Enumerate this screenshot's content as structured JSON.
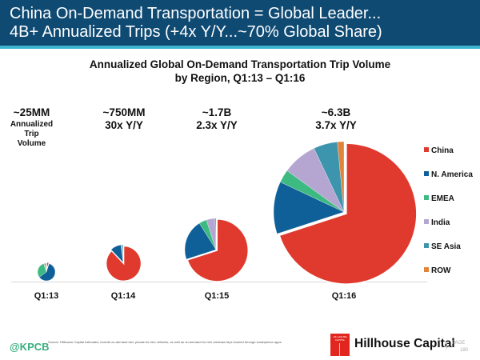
{
  "header": {
    "line1": "China On-Demand Transportation = Global Leader...",
    "line2": "4B+ Annualized Trips (+4x Y/Y...~70% Global Share)"
  },
  "chart_data": {
    "type": "pie",
    "title": "Annualized Global On-Demand Transportation Trip Volume",
    "subtitle": "by Region, Q1:13 – Q1:16",
    "legend_position": "right",
    "regions": [
      "China",
      "N. America",
      "EMEA",
      "India",
      "SE Asia",
      "ROW"
    ],
    "colors": {
      "China": "#e03a2e",
      "N. America": "#0f5f98",
      "EMEA": "#3dba82",
      "India": "#b4a6d0",
      "SE Asia": "#3d95ad",
      "ROW": "#e0843a"
    },
    "periods": [
      {
        "label": "Q1:13",
        "volume_label": "~25MM",
        "growth_label": "",
        "volume_trips": 25000000,
        "shares_pct": {
          "China": 5,
          "N. America": 60,
          "EMEA": 30,
          "India": 1,
          "SE Asia": 2,
          "ROW": 2
        }
      },
      {
        "label": "Q1:14",
        "volume_label": "~750MM",
        "growth_label": "30x Y/Y",
        "volume_trips": 750000000,
        "shares_pct": {
          "China": 88,
          "N. America": 10,
          "EMEA": 0.5,
          "India": 0.5,
          "SE Asia": 1,
          "ROW": 0
        }
      },
      {
        "label": "Q1:15",
        "volume_label": "~1.7B",
        "growth_label": "2.3x Y/Y",
        "volume_trips": 1700000000,
        "shares_pct": {
          "China": 70,
          "N. America": 21,
          "EMEA": 4,
          "India": 4.5,
          "SE Asia": 0.5,
          "ROW": 0
        }
      },
      {
        "label": "Q1:16",
        "volume_label": "~6.3B",
        "growth_label": "3.7x Y/Y",
        "volume_trips": 6300000000,
        "shares_pct": {
          "China": 70,
          "N. America": 12,
          "EMEA": 3,
          "India": 8,
          "SE Asia": 5.5,
          "ROW": 1.5
        }
      }
    ],
    "first_period_note": "Annualized Trip Volume"
  },
  "footer": {
    "handle": "@KPCB",
    "source": "Source: Hillhouse Capital estimates, include on-demand taxi, private for-hire vehicles, as well as on-demand for-hire rickshaw trips booked through smartphone apps.",
    "logo_text": "HILLHOUSE CAPITAL",
    "company": "Hillhouse Capital",
    "page_label": "PAGE",
    "page_number": "180"
  }
}
